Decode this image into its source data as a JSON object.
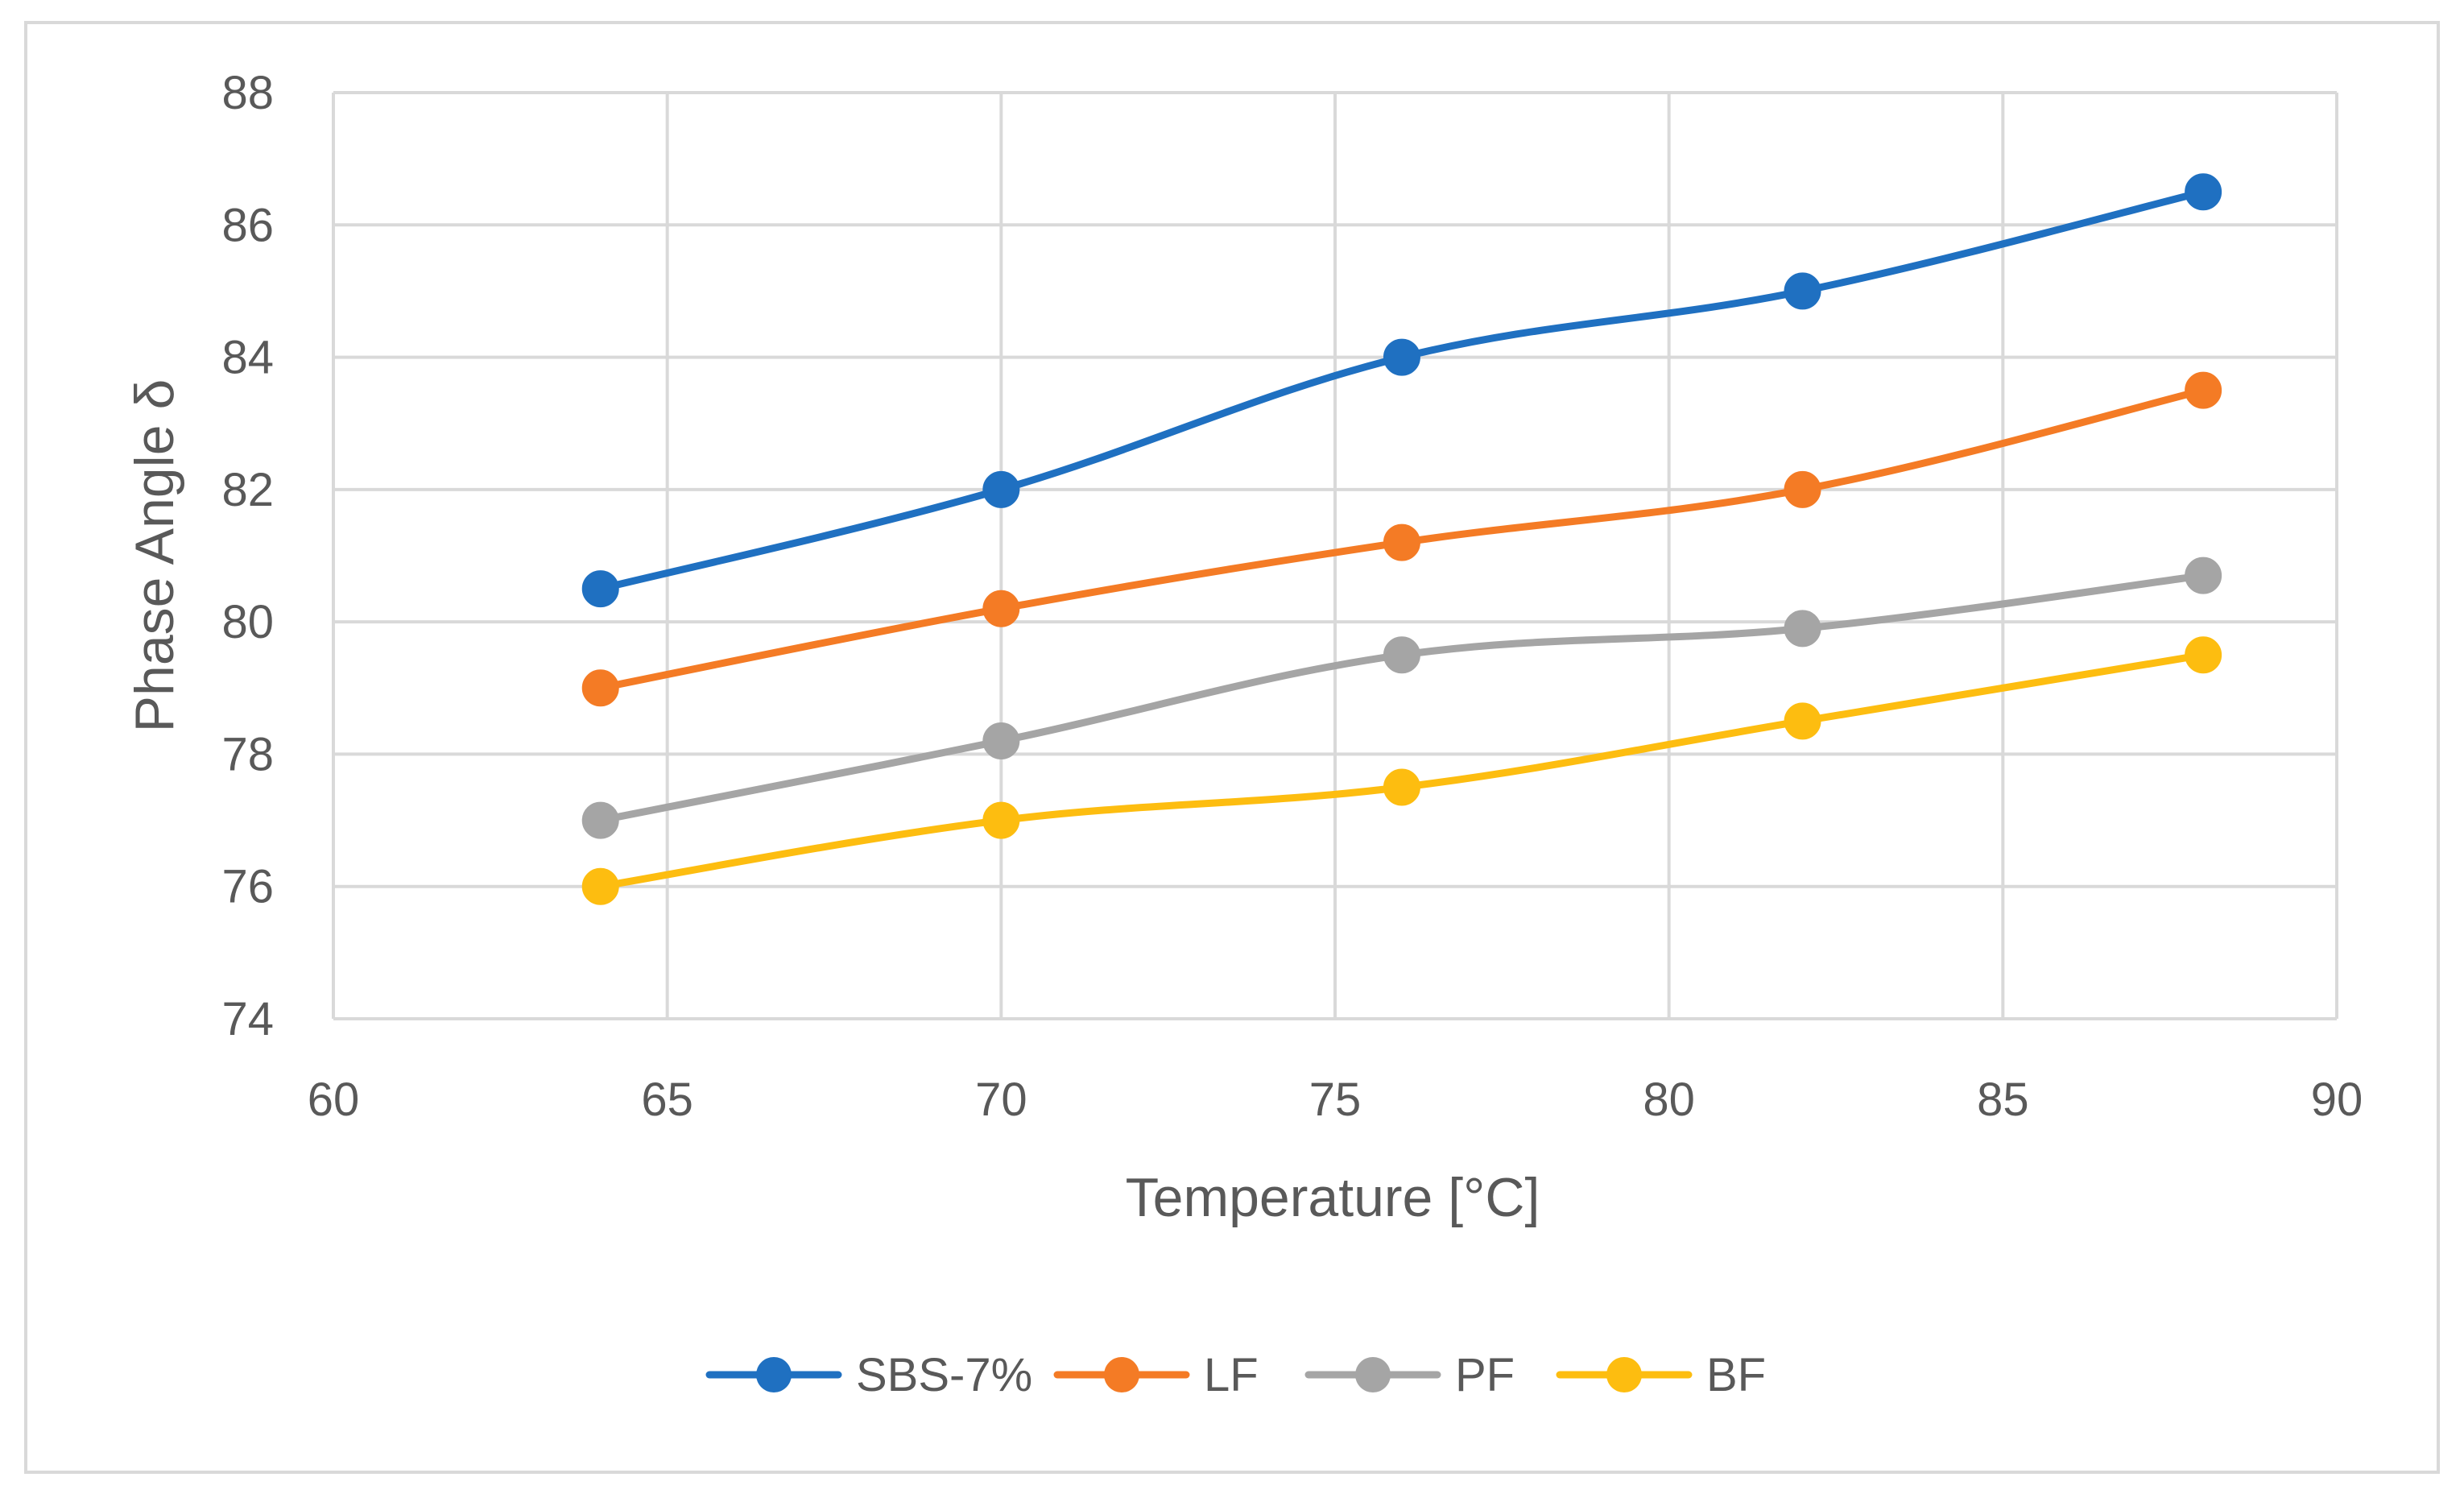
{
  "chart_data": {
    "type": "line",
    "title": "",
    "xlabel": "Temperature [°C]",
    "ylabel": "Phase Angle δ",
    "xlim": [
      60,
      90
    ],
    "ylim": [
      74,
      88
    ],
    "xticks": [
      60,
      65,
      70,
      75,
      80,
      85,
      90
    ],
    "yticks": [
      74,
      76,
      78,
      80,
      82,
      84,
      86,
      88
    ],
    "grid": true,
    "legend_position": "bottom",
    "x": [
      64,
      70,
      76,
      82,
      88
    ],
    "series": [
      {
        "name": "SBS-7%",
        "color": "#1f70c1",
        "values": [
          80.5,
          82.0,
          84.0,
          85.0,
          86.5
        ]
      },
      {
        "name": "LF",
        "color": "#f47b25",
        "values": [
          79.0,
          80.2,
          81.2,
          82.0,
          83.5
        ]
      },
      {
        "name": "PF",
        "color": "#a5a5a5",
        "values": [
          77.0,
          78.2,
          79.5,
          79.9,
          80.7
        ]
      },
      {
        "name": "BF",
        "color": "#fdbd10",
        "values": [
          76.0,
          77.0,
          77.5,
          78.5,
          79.5
        ]
      }
    ]
  }
}
